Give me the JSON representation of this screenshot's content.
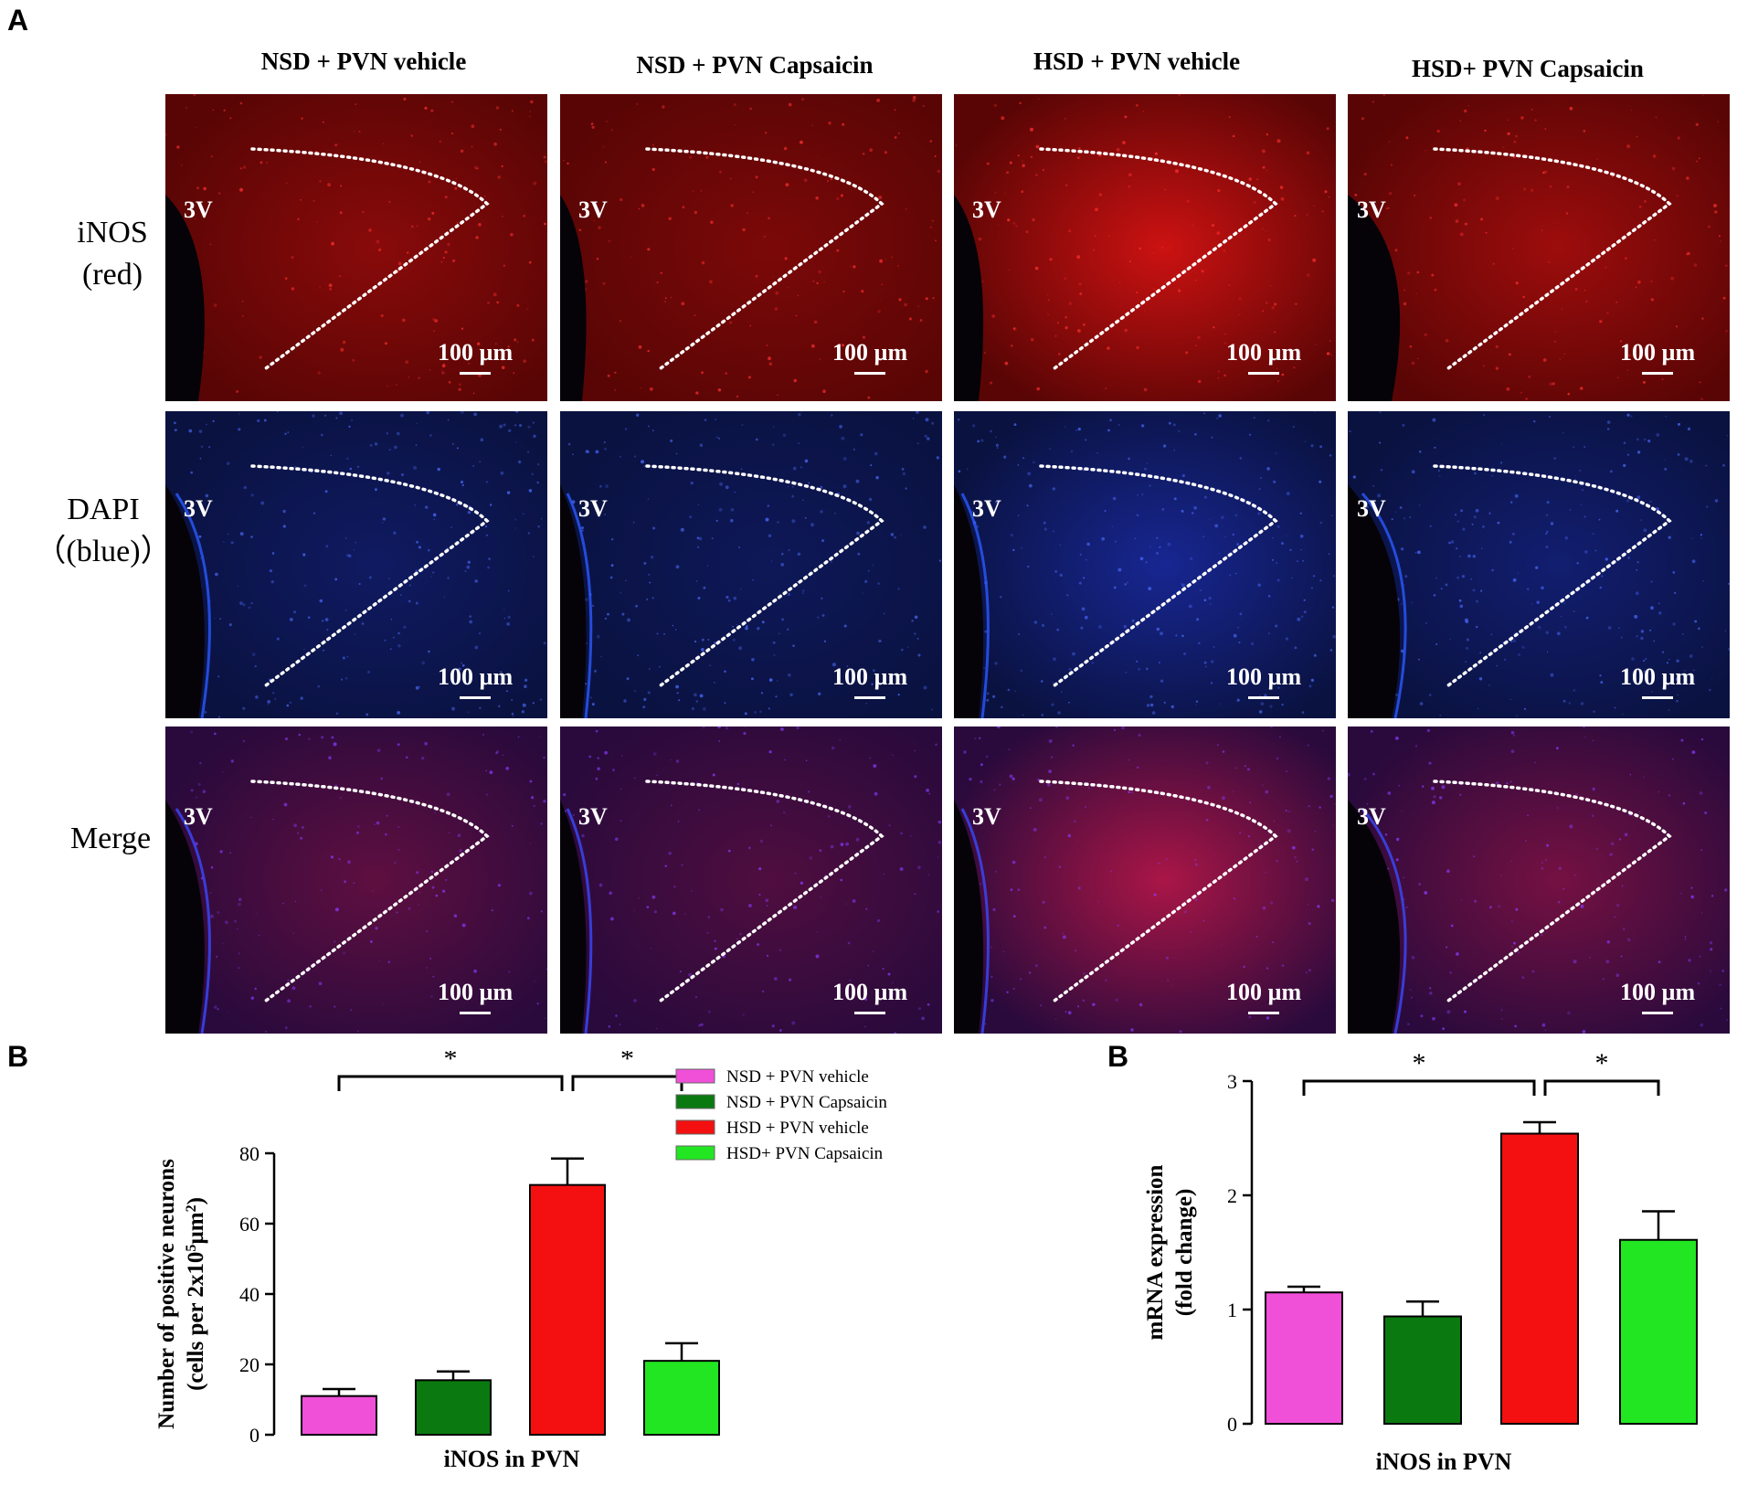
{
  "figure": {
    "panel_a_letter": "A",
    "panel_b_letter_left": "B",
    "panel_b_letter_right": "B",
    "columns": [
      "NSD + PVN vehicle",
      "NSD + PVN Capsaicin",
      "HSD + PVN vehicle",
      "HSD+  PVN Capsaicin"
    ],
    "rows": [
      {
        "line1": "iNOS",
        "line2": "(red)"
      },
      {
        "line1": "DAPI",
        "line2": "(blue)"
      },
      {
        "line1": "Merge",
        "line2": ""
      }
    ],
    "ventricle_label": "3V",
    "scale_label": "100 µm",
    "colors": {
      "red_stain": "#c8101a",
      "blue_stain": "#1b2fa8",
      "merge": "#5a1560"
    }
  },
  "chart_data": [
    {
      "type": "bar",
      "title": "",
      "xlabel": "iNOS in PVN",
      "ylabel": "Number of positive neurons",
      "ylabel2": "(cells per 2x10",
      "ylabel2_sup": "5",
      "ylabel2_end": "µm",
      "ylabel2_sup2": "2",
      "ylabel2_close": ")",
      "ylim": [
        0,
        80
      ],
      "yticks": [
        "0",
        "20",
        "40",
        "60",
        "80"
      ],
      "categories": [
        "NSD + PVN vehicle",
        "NSD + PVN Capsaicin",
        "HSD + PVN vehicle",
        "HSD+  PVN Capsaicin"
      ],
      "values": [
        11,
        15.5,
        71,
        21
      ],
      "errors": [
        2,
        2.5,
        7.5,
        5
      ],
      "colors": [
        "#f04fd8",
        "#0a7a10",
        "#f41010",
        "#22e622"
      ],
      "significance": [
        "*",
        "*"
      ],
      "legend": [
        "NSD + PVN vehicle",
        "NSD + PVN Capsaicin",
        "HSD + PVN vehicle",
        "HSD+  PVN Capsaicin"
      ]
    },
    {
      "type": "bar",
      "title": "",
      "xlabel": "iNOS  in PVN",
      "ylabel": "mRNA expression",
      "ylabel2": "(fold change)",
      "ylim": [
        0,
        3
      ],
      "yticks": [
        "0",
        "1",
        "2",
        "3"
      ],
      "categories": [
        "NSD + PVN vehicle",
        "NSD + PVN Capsaicin",
        "HSD + PVN vehicle",
        "HSD+  PVN Capsaicin"
      ],
      "values": [
        1.15,
        0.94,
        2.54,
        1.61
      ],
      "errors": [
        0.05,
        0.13,
        0.1,
        0.25
      ],
      "colors": [
        "#f04fd8",
        "#0a7a10",
        "#f41010",
        "#22e622"
      ],
      "significance": [
        "*",
        "*"
      ]
    }
  ]
}
